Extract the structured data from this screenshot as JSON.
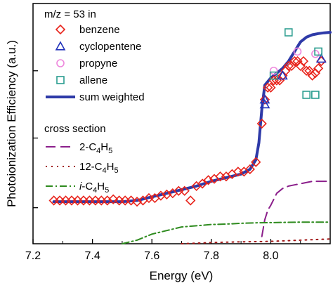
{
  "chart_data": {
    "type": "line",
    "xlabel": "Energy (eV)",
    "ylabel": "Photoionization Efficiency (a.u.)",
    "xlim": [
      7.2,
      8.2
    ],
    "ylim": [
      0,
      1
    ],
    "x_ticks": [
      7.2,
      7.4,
      7.6,
      7.8,
      8.0
    ],
    "x_tick_labels": [
      "7.2",
      "7.4",
      "7.6",
      "7.8",
      "8.0"
    ],
    "y_tick_labels": [],
    "grid": false,
    "legend_title": "m/z = 53 in",
    "legend_placement": "top-left",
    "cross_section_title": "cross section",
    "markers": [
      {
        "name": "benzene",
        "label": "benzene",
        "marker": "diamond",
        "color": "#e8231b",
        "x": [
          7.27,
          7.29,
          7.31,
          7.33,
          7.35,
          7.37,
          7.39,
          7.41,
          7.43,
          7.45,
          7.47,
          7.49,
          7.51,
          7.53,
          7.55,
          7.57,
          7.59,
          7.61,
          7.63,
          7.65,
          7.67,
          7.69,
          7.71,
          7.73,
          7.75,
          7.77,
          7.79,
          7.81,
          7.83,
          7.85,
          7.87,
          7.89,
          7.91,
          7.93,
          7.95,
          7.97,
          7.98,
          7.99,
          8.0,
          8.01,
          8.02,
          8.03,
          8.04,
          8.05,
          8.06,
          8.07,
          8.08,
          8.09,
          8.1,
          8.11,
          8.12,
          8.13,
          8.14,
          8.15,
          8.16,
          8.17
        ],
        "y": [
          0.18,
          0.18,
          0.18,
          0.18,
          0.18,
          0.18,
          0.18,
          0.18,
          0.18,
          0.18,
          0.185,
          0.18,
          0.18,
          0.18,
          0.175,
          0.18,
          0.19,
          0.19,
          0.2,
          0.205,
          0.21,
          0.22,
          0.22,
          0.18,
          0.24,
          0.25,
          0.265,
          0.27,
          0.28,
          0.28,
          0.29,
          0.3,
          0.3,
          0.31,
          0.34,
          0.5,
          0.6,
          0.65,
          0.65,
          0.68,
          0.68,
          0.68,
          0.7,
          0.72,
          0.74,
          0.74,
          0.76,
          0.76,
          0.74,
          0.76,
          0.72,
          0.72,
          0.7,
          0.71,
          0.73,
          0.76
        ]
      },
      {
        "name": "cyclopentene",
        "label": "cyclopentene",
        "marker": "triangle",
        "color": "#2233bb",
        "x": [
          7.98,
          7.98,
          8.04,
          8.17
        ],
        "y": [
          0.58,
          0.6,
          0.7,
          0.77
        ]
      },
      {
        "name": "propyne",
        "label": "propyne",
        "marker": "circle",
        "color": "#ee88dd",
        "x": [
          8.01,
          8.09,
          8.15
        ],
        "y": [
          0.72,
          0.8,
          0.79
        ]
      },
      {
        "name": "allene",
        "label": "allene",
        "marker": "square",
        "color": "#2a9d8f",
        "x": [
          8.01,
          8.06,
          8.12,
          8.16,
          8.15
        ],
        "y": [
          0.7,
          0.88,
          0.62,
          0.8,
          0.62
        ]
      }
    ],
    "series": [
      {
        "name": "sum weighted",
        "label": "sum weighted",
        "color": "#2e3aa8",
        "style": "solid",
        "x": [
          7.27,
          7.5,
          7.55,
          7.6,
          7.65,
          7.7,
          7.75,
          7.8,
          7.85,
          7.9,
          7.93,
          7.95,
          7.96,
          7.97,
          7.98,
          8.0,
          8.02,
          8.04,
          8.06,
          8.08,
          8.1,
          8.12,
          8.14,
          8.16,
          8.18,
          8.2
        ],
        "y": [
          0.175,
          0.175,
          0.18,
          0.195,
          0.21,
          0.225,
          0.24,
          0.26,
          0.275,
          0.29,
          0.31,
          0.35,
          0.42,
          0.56,
          0.66,
          0.69,
          0.71,
          0.73,
          0.76,
          0.8,
          0.84,
          0.86,
          0.87,
          0.875,
          0.878,
          0.88
        ]
      }
    ],
    "cross_sections": [
      {
        "name": "2-C4H5",
        "label": "2-C",
        "sub1": "4",
        "mid": "H",
        "sub2": "5",
        "italic_prefix": "",
        "color": "#8b1f8b",
        "style": "dashed",
        "x": [
          7.97,
          7.98,
          7.99,
          8.0,
          8.02,
          8.04,
          8.06,
          8.08,
          8.1,
          8.14,
          8.2
        ],
        "y": [
          0.03,
          0.1,
          0.14,
          0.16,
          0.21,
          0.23,
          0.24,
          0.245,
          0.25,
          0.26,
          0.26
        ]
      },
      {
        "name": "12-C4H5",
        "label": "12-C",
        "sub1": "4",
        "mid": "H",
        "sub2": "5",
        "italic_prefix": "",
        "color": "#a01515",
        "style": "dotted",
        "x": [
          7.7,
          7.8,
          7.9,
          8.0,
          8.1,
          8.2
        ],
        "y": [
          0.0,
          0.005,
          0.008,
          0.01,
          0.015,
          0.02
        ]
      },
      {
        "name": "i-C4H5",
        "label": "-C",
        "sub1": "4",
        "mid": "H",
        "sub2": "5",
        "italic_prefix": "i",
        "color": "#2e8b1e",
        "style": "dashdot",
        "x": [
          7.5,
          7.55,
          7.6,
          7.65,
          7.7,
          7.75,
          7.8,
          7.85,
          7.9,
          7.95,
          8.0,
          8.1,
          8.2
        ],
        "y": [
          0.0,
          0.015,
          0.04,
          0.055,
          0.07,
          0.075,
          0.08,
          0.082,
          0.085,
          0.087,
          0.088,
          0.09,
          0.09
        ]
      }
    ]
  }
}
